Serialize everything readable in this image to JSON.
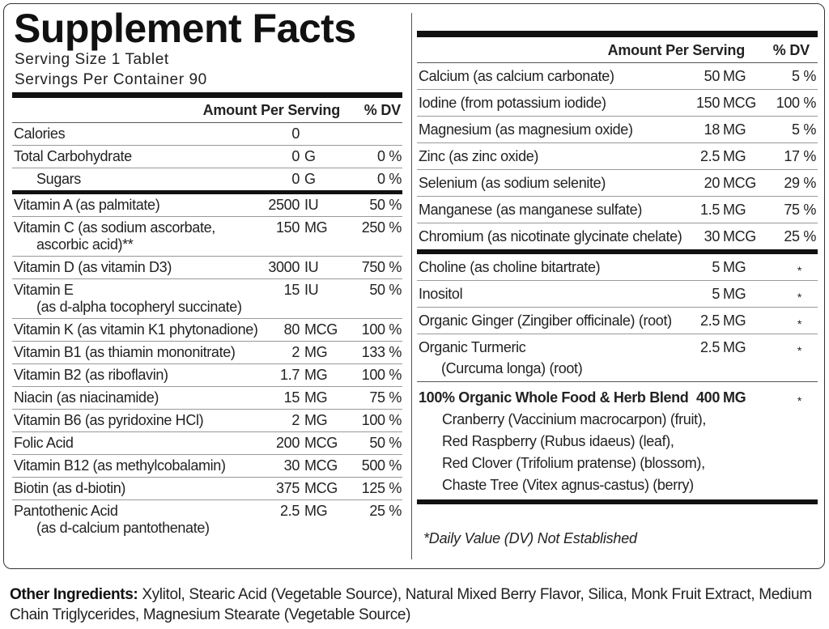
{
  "title": "Supplement Facts",
  "serving_size": "Serving Size 1 Tablet",
  "servings_per_container": "Servings Per Container 90",
  "left": {
    "header": {
      "amount": "Amount Per Serving",
      "dv": "% DV"
    },
    "sections": [
      [
        {
          "name": [
            "Calories"
          ],
          "amount": "0"
        },
        {
          "name": [
            "Total Carbohydrate"
          ],
          "amount": "0",
          "unit": "G",
          "dv": "0 %"
        },
        {
          "name": [
            "Sugars"
          ],
          "amount": "0",
          "unit": "G",
          "dv": "0 %",
          "indent": true
        }
      ],
      [
        {
          "name": [
            "Vitamin A (as palmitate)"
          ],
          "amount": "2500",
          "unit": "IU",
          "dv": "50 %"
        },
        {
          "name": [
            "Vitamin C (as sodium ascorbate,",
            "ascorbic acid)**"
          ],
          "amount": "150",
          "unit": "MG",
          "dv": "250 %"
        },
        {
          "name": [
            "Vitamin D (as vitamin D3)"
          ],
          "amount": "3000",
          "unit": "IU",
          "dv": "750 %"
        },
        {
          "name": [
            "Vitamin E",
            "(as d-alpha tocopheryl succinate)"
          ],
          "amount": "15",
          "unit": "IU",
          "dv": "50 %"
        },
        {
          "name": [
            "Vitamin K (as vitamin K1 phytonadione)"
          ],
          "amount": "80",
          "unit": "MCG",
          "dv": "100 %"
        },
        {
          "name": [
            "Vitamin B1 (as thiamin mononitrate)"
          ],
          "amount": "2",
          "unit": "MG",
          "dv": "133 %"
        },
        {
          "name": [
            "Vitamin B2 (as riboflavin)"
          ],
          "amount": "1.7",
          "unit": "MG",
          "dv": "100 %"
        },
        {
          "name": [
            "Niacin (as niacinamide)"
          ],
          "amount": "15",
          "unit": "MG",
          "dv": "75 %"
        },
        {
          "name": [
            "Vitamin B6 (as pyridoxine HCl)"
          ],
          "amount": "2",
          "unit": "MG",
          "dv": "100 %"
        },
        {
          "name": [
            "Folic Acid"
          ],
          "amount": "200",
          "unit": "MCG",
          "dv": "50 %"
        },
        {
          "name": [
            "Vitamin B12 (as methylcobalamin)"
          ],
          "amount": "30",
          "unit": "MCG",
          "dv": "500 %"
        },
        {
          "name": [
            "Biotin (as d-biotin)"
          ],
          "amount": "375",
          "unit": "MCG",
          "dv": "125 %"
        },
        {
          "name": [
            "Pantothenic Acid",
            "(as d-calcium pantothenate)"
          ],
          "amount": "2.5",
          "unit": "MG",
          "dv": "25 %"
        }
      ]
    ]
  },
  "right": {
    "header": {
      "amount": "Amount Per Serving",
      "dv": "% DV"
    },
    "sections": [
      [
        {
          "name": [
            "Calcium (as calcium carbonate)"
          ],
          "amount": "50",
          "unit": "MG",
          "dv": "5 %"
        },
        {
          "name": [
            "Iodine (from potassium iodide)"
          ],
          "amount": "150",
          "unit": "MCG",
          "dv": "100 %"
        },
        {
          "name": [
            "Magnesium (as magnesium oxide)"
          ],
          "amount": "18",
          "unit": "MG",
          "dv": "5 %"
        },
        {
          "name": [
            "Zinc (as zinc oxide)"
          ],
          "amount": "2.5",
          "unit": "MG",
          "dv": "17 %"
        },
        {
          "name": [
            "Selenium (as sodium selenite)"
          ],
          "amount": "20",
          "unit": "MCG",
          "dv": "29 %"
        },
        {
          "name": [
            "Manganese (as manganese sulfate)"
          ],
          "amount": "1.5",
          "unit": "MG",
          "dv": "75 %"
        },
        {
          "name": [
            "Chromium (as nicotinate glycinate chelate)"
          ],
          "amount": "30",
          "unit": "MCG",
          "dv": "25 %"
        }
      ],
      [
        {
          "name": [
            "Choline (as choline bitartrate)"
          ],
          "amount": "5",
          "unit": "MG",
          "dv": "*"
        },
        {
          "name": [
            "Inositol"
          ],
          "amount": "5",
          "unit": "MG",
          "dv": "*"
        },
        {
          "name": [
            "Organic Ginger (Zingiber officinale) (root)"
          ],
          "amount": "2.5",
          "unit": "MG",
          "dv": "*"
        },
        {
          "name": [
            "Organic Turmeric",
            "(Curcuma longa) (root)"
          ],
          "amount": "2.5",
          "unit": "MG",
          "dv": "*"
        }
      ]
    ],
    "blend": {
      "name": "100% Organic Whole Food & Herb Blend",
      "amount": "400",
      "unit": "MG",
      "dv": "*",
      "ingredients": [
        "Cranberry (Vaccinium macrocarpon) (fruit),",
        "Red Raspberry (Rubus idaeus) (leaf),",
        "Red Clover (Trifolium pratense) (blossom),",
        "Chaste Tree (Vitex agnus-castus) (berry)"
      ]
    },
    "footnote": "*Daily Value (DV) Not Established"
  },
  "other_ingredients": {
    "label": "Other Ingredients:",
    "text": "Xylitol, Stearic Acid (Vegetable Source), Natural Mixed Berry Flavor, Silica, Monk Fruit Extract, Medium Chain Triglycerides, Magnesium Stearate (Vegetable Source)"
  }
}
